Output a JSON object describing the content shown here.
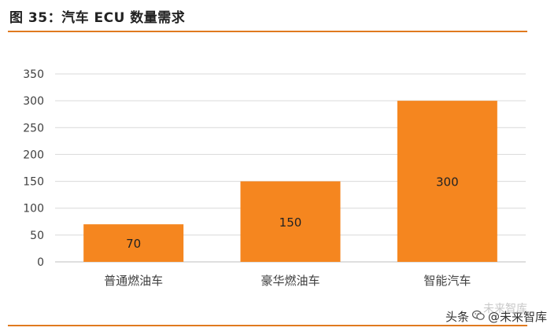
{
  "figure": {
    "title": "图 35：汽车 ECU 数量需求"
  },
  "colors": {
    "accent": "#e07a1f",
    "bar": "#f5861f",
    "grid": "#d9d9d9",
    "axis_text": "#404040"
  },
  "watermark": {
    "prefix": "头条",
    "handle": "@未来智库",
    "brand_faint": "未来智库",
    "icon": "wechat-style-icon"
  },
  "chart_data": {
    "type": "bar",
    "categories": [
      "普通燃油车",
      "豪华燃油车",
      "智能汽车"
    ],
    "values": [
      70,
      150,
      300
    ],
    "data_labels": [
      "70",
      "150",
      "300"
    ],
    "ylim": [
      0,
      350
    ],
    "yticks": [
      0,
      50,
      100,
      150,
      200,
      250,
      300,
      350
    ],
    "ytick_labels": [
      "0",
      "50",
      "100",
      "150",
      "200",
      "250",
      "300",
      "350"
    ],
    "grid": true,
    "legend": "none"
  }
}
